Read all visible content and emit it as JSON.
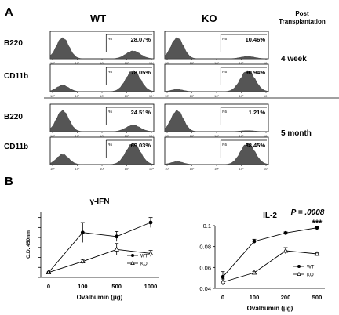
{
  "figure": {
    "panel_a_letter": "A",
    "panel_b_letter": "B",
    "col_wt": "WT",
    "col_ko": "KO",
    "post_label_line1": "Post",
    "post_label_line2": "Transplantation",
    "time_4wk": "4 week",
    "time_5mo": "5 month",
    "row_b220": "B220",
    "row_cd11b": "CD11b",
    "gate_tag": "R6",
    "hist_tick_labels": [
      "10⁰",
      "10¹",
      "10²",
      "10³",
      "10⁴"
    ]
  },
  "chart_data": [
    {
      "type": "histogram-grid",
      "columns": [
        "WT",
        "KO"
      ],
      "rows": [
        "B220",
        "CD11b",
        "B220",
        "CD11b"
      ],
      "time_groups": [
        "4 week",
        "4 week",
        "5 month",
        "5 month"
      ],
      "percentages": [
        [
          "28.07%",
          "10.46%"
        ],
        [
          "78.05%",
          "90.94%"
        ],
        [
          "24.51%",
          "1.21%"
        ],
        [
          "69.03%",
          "88.45%"
        ]
      ]
    },
    {
      "type": "line",
      "title": "γ-IFN",
      "xlabel": "Ovalbumin (μg)",
      "ylabel": "O.D. 450nm",
      "categories": [
        "0",
        "100",
        "500",
        "1000"
      ],
      "series": [
        {
          "name": "WT",
          "values": [
            0.05,
            0.45,
            0.41,
            0.55
          ],
          "err": [
            0.0,
            0.1,
            0.05,
            0.05
          ],
          "marker": "filled-circle"
        },
        {
          "name": "KO",
          "values": [
            0.05,
            0.16,
            0.28,
            0.24
          ],
          "err": [
            0.0,
            0.02,
            0.06,
            0.03
          ],
          "marker": "open-triangle"
        }
      ]
    },
    {
      "type": "line",
      "title": "IL-2",
      "xlabel": "Ovalbumin (μg)",
      "ylabel": "",
      "categories": [
        "0",
        "100",
        "200",
        "500"
      ],
      "ylim": [
        0.04,
        0.1
      ],
      "yticks": [
        "0.04",
        "0.06",
        "0.08",
        "0.1"
      ],
      "annotation_p": "P = .0008",
      "annotation_sig": "***",
      "series": [
        {
          "name": "WT",
          "values": [
            0.051,
            0.085,
            0.093,
            0.098
          ],
          "err": [
            0.005,
            0.002,
            0.001,
            0.001
          ],
          "marker": "filled-circle"
        },
        {
          "name": "KO",
          "values": [
            0.046,
            0.055,
            0.076,
            0.073
          ],
          "err": [
            0.003,
            0.001,
            0.003,
            0.001
          ],
          "marker": "open-triangle"
        }
      ]
    }
  ]
}
